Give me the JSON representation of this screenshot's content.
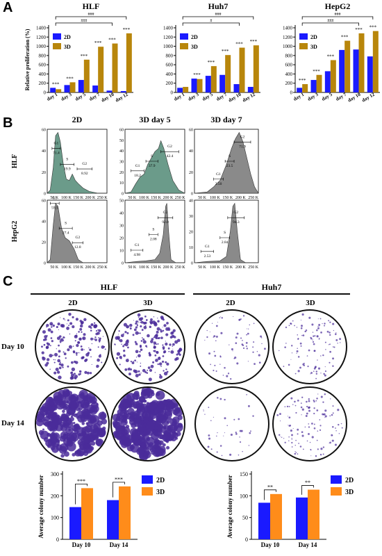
{
  "panels": {
    "a": "A",
    "b": "B",
    "c": "C"
  },
  "colors": {
    "d2": "#1a1aff",
    "d3": "#b8860b",
    "d3c": "#ff8c1a",
    "flow": "#8a8a8a",
    "flowGreen": "#6b9b8a",
    "stroke": "#000000",
    "purple": "#4a2c9a"
  },
  "panelA": {
    "ylabel": "Relative proliferation (%)",
    "legend": [
      "2D",
      "3D"
    ],
    "categories": [
      "day 1",
      "day 3",
      "day 5",
      "day 7",
      "day 10",
      "day 12"
    ],
    "ymax": 1400,
    "yticks": [
      0,
      200,
      400,
      600,
      800,
      1000,
      1200,
      1400
    ],
    "charts": [
      {
        "title": "HLF",
        "d2": [
          100,
          160,
          270,
          150,
          40,
          30
        ],
        "d3": [
          70,
          220,
          710,
          990,
          1060,
          1280
        ],
        "stars": [
          "***",
          "***",
          "***",
          "***",
          "***",
          "***"
        ],
        "brackets": [
          "###",
          "###"
        ]
      },
      {
        "title": "Huh7",
        "d2": [
          100,
          300,
          360,
          380,
          180,
          120
        ],
        "d3": [
          120,
          290,
          570,
          810,
          970,
          1020
        ],
        "stars": [
          "",
          "***",
          "***",
          "***",
          "***",
          "***"
        ],
        "brackets": [
          "###",
          "#"
        ]
      },
      {
        "title": "HepG2",
        "d2": [
          100,
          270,
          460,
          920,
          930,
          780
        ],
        "d3": [
          180,
          380,
          700,
          1120,
          1280,
          1330
        ],
        "stars": [
          "***",
          "***",
          "***",
          "***",
          "***",
          "***"
        ],
        "brackets": [
          "###",
          "###"
        ]
      }
    ]
  },
  "panelB": {
    "colTitles": [
      "2D",
      "3D day 5",
      "3D day 7"
    ],
    "rowTitles": [
      "HLF",
      "HepG2"
    ],
    "xticks": [
      "50 K",
      "100 K",
      "150 K",
      "200 K",
      "250 K"
    ],
    "hlfYTicks": [
      [
        "0",
        "20",
        "40",
        "60"
      ],
      [
        "0",
        "10",
        "20",
        "30",
        "40",
        "50",
        "60"
      ],
      [
        "0",
        "20",
        "40",
        "60"
      ]
    ],
    "hepYTicks": [
      [
        "0",
        "20",
        "40",
        "60"
      ],
      [
        "0",
        "10",
        "20",
        "30",
        "40",
        "50"
      ],
      [
        "0",
        "10",
        "20",
        "30",
        "40"
      ]
    ],
    "hlf": [
      {
        "gates": [
          {
            "n": "G1",
            "v": "71.4"
          },
          {
            "n": "S",
            "v": "19.9"
          },
          {
            "n": "G2",
            "v": "8.92"
          }
        ]
      },
      {
        "gates": [
          {
            "n": "G1",
            "v": "18.2"
          },
          {
            "n": "S",
            "v": "37.9"
          },
          {
            "n": "G2",
            "v": "42.4"
          }
        ]
      },
      {
        "gates": [
          {
            "n": "G1",
            "v": "2.50"
          },
          {
            "n": "S",
            "v": "23.5"
          },
          {
            "n": "G2",
            "v": "71.9"
          }
        ]
      }
    ],
    "hepg2": [
      {
        "gates": [
          {
            "n": "G1",
            "v": "59.5"
          },
          {
            "n": "S",
            "v": "27.4"
          },
          {
            "n": "G2",
            "v": "12.8"
          }
        ]
      },
      {
        "gates": [
          {
            "n": "G1",
            "v": "4.98"
          },
          {
            "n": "S",
            "v": "2.08"
          },
          {
            "n": "G2",
            "v": "92.0"
          }
        ]
      },
      {
        "gates": [
          {
            "n": "G1",
            "v": "2.53"
          },
          {
            "n": "S",
            "v": "2.84"
          },
          {
            "n": "G2",
            "v": "94.3"
          }
        ]
      }
    ]
  },
  "panelC": {
    "cellLines": [
      "HLF",
      "Huh7"
    ],
    "colHeaders": [
      "2D",
      "3D",
      "2D",
      "3D"
    ],
    "rowHeaders": [
      "Day 10",
      "Day 14"
    ],
    "colonyDensity": [
      [
        180,
        220,
        70,
        110
      ],
      [
        260,
        330,
        40,
        120
      ]
    ],
    "bar": {
      "ylabel": "Average colony number",
      "legend": [
        "2D",
        "3D"
      ],
      "categories": [
        "Day 10",
        "Day 14"
      ],
      "charts": [
        {
          "d2": [
            148,
            180
          ],
          "d3": [
            235,
            243
          ],
          "ymax": 300,
          "yticks": [
            0,
            100,
            200,
            300
          ],
          "stars": [
            "***",
            "***"
          ]
        },
        {
          "d2": [
            84,
            96
          ],
          "d3": [
            104,
            114
          ],
          "ymax": 150,
          "yticks": [
            0,
            50,
            100,
            150
          ],
          "stars": [
            "**",
            "**"
          ]
        }
      ]
    }
  }
}
